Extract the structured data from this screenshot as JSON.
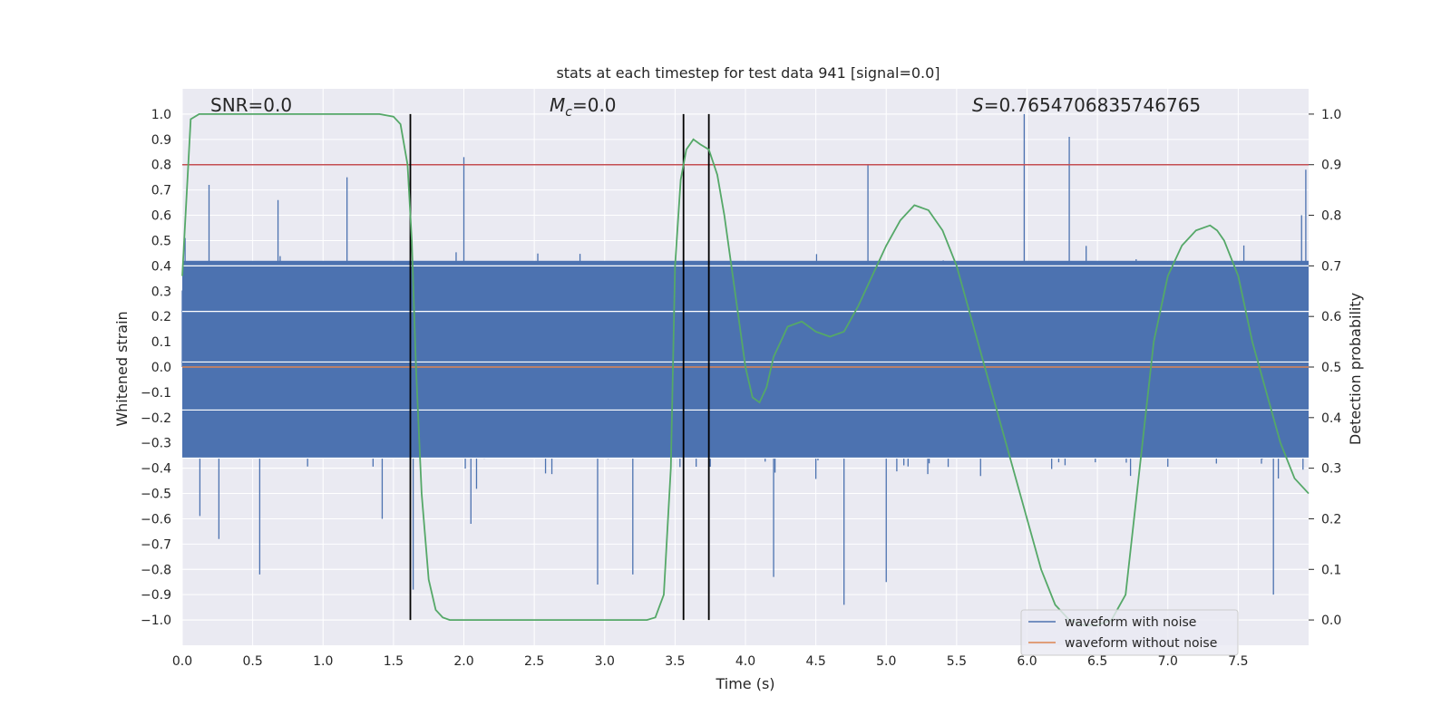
{
  "colors": {
    "plot_bg": "#eaeaf2",
    "grid": "#ffffff",
    "noisy": "#4c72b0",
    "clean": "#dd8452",
    "probability": "#55a868",
    "threshold": "#c44e52",
    "markers": "#000000",
    "text": "#262626"
  },
  "chart_data": {
    "type": "line",
    "title": "stats at each timestep for test data 941 [signal=0.0]",
    "xlabel": "Time (s)",
    "ylabel_left": "Whitened strain",
    "ylabel_right": "Detection probability",
    "xlim": [
      0.0,
      8.0
    ],
    "ylim_left": [
      -1.1,
      1.1
    ],
    "ylim_right": [
      -0.05,
      1.05
    ],
    "x_ticks": [
      0.0,
      0.5,
      1.0,
      1.5,
      2.0,
      2.5,
      3.0,
      3.5,
      4.0,
      4.5,
      5.0,
      5.5,
      6.0,
      6.5,
      7.0,
      7.5
    ],
    "x_tick_labels": [
      "0.0",
      "0.5",
      "1.0",
      "1.5",
      "2.0",
      "2.5",
      "3.0",
      "3.5",
      "4.0",
      "4.5",
      "5.0",
      "5.5",
      "6.0",
      "6.5",
      "7.0",
      "7.5"
    ],
    "y_left_ticks": [
      1.0,
      0.9,
      0.8,
      0.7,
      0.6,
      0.5,
      0.4,
      0.3,
      0.2,
      0.1,
      0.0,
      -0.1,
      -0.2,
      -0.3,
      -0.4,
      -0.5,
      -0.6,
      -0.7,
      -0.8,
      -0.9,
      -1.0
    ],
    "y_left_tick_labels": [
      "1.0",
      "0.9",
      "0.8",
      "0.7",
      "0.6",
      "0.5",
      "0.4",
      "0.3",
      "0.2",
      "0.1",
      "0.0",
      "−0.1",
      "−0.2",
      "−0.3",
      "−0.4",
      "−0.5",
      "−0.6",
      "−0.7",
      "−0.8",
      "−0.9",
      "−1.0"
    ],
    "y_right_ticks": [
      1.0,
      0.9,
      0.8,
      0.7,
      0.6,
      0.5,
      0.4,
      0.3,
      0.2,
      0.1,
      0.0
    ],
    "y_right_tick_labels": [
      "1.0",
      "0.9",
      "0.8",
      "0.7",
      "0.6",
      "0.5",
      "0.4",
      "0.3",
      "0.2",
      "0.1",
      "0.0"
    ],
    "grid": true,
    "legend_position": "lower-right",
    "annotations": {
      "snr": "SNR=0.0",
      "mc_symbol": "M",
      "mc_sub": "c",
      "mc_value": "=0.0",
      "s_symbol": "S",
      "s_value": "=0.7654706835746765"
    },
    "threshold_probability": 0.9,
    "vertical_markers_x": [
      1.62,
      3.56,
      3.74
    ],
    "series": [
      {
        "name": "waveform with noise",
        "axis": "left",
        "description_stats": {
          "x_range": [
            0.0,
            8.0
          ],
          "typical_amplitude": 0.3,
          "max": 1.0,
          "min": -0.94
        },
        "peaks": [
          {
            "x": 0.02,
            "y": 0.51
          },
          {
            "x": 0.19,
            "y": 0.72
          },
          {
            "x": 0.26,
            "y": -0.68
          },
          {
            "x": 0.55,
            "y": -0.82
          },
          {
            "x": 0.68,
            "y": 0.66
          },
          {
            "x": 1.17,
            "y": 0.75
          },
          {
            "x": 1.42,
            "y": -0.6
          },
          {
            "x": 1.64,
            "y": -0.88
          },
          {
            "x": 2.0,
            "y": 0.83
          },
          {
            "x": 2.05,
            "y": -0.62
          },
          {
            "x": 2.95,
            "y": -0.86
          },
          {
            "x": 3.2,
            "y": -0.82
          },
          {
            "x": 4.2,
            "y": -0.83
          },
          {
            "x": 4.7,
            "y": -0.94
          },
          {
            "x": 4.87,
            "y": 0.8
          },
          {
            "x": 5.0,
            "y": -0.85
          },
          {
            "x": 5.98,
            "y": 1.0
          },
          {
            "x": 6.3,
            "y": 0.91
          },
          {
            "x": 7.75,
            "y": -0.9
          },
          {
            "x": 7.95,
            "y": 0.6
          },
          {
            "x": 7.98,
            "y": 0.78
          }
        ]
      },
      {
        "name": "waveform without noise",
        "axis": "left",
        "x": [
          0.0,
          8.0
        ],
        "y": [
          0.0,
          0.0
        ]
      },
      {
        "name": "detection probability",
        "axis": "right",
        "x": [
          0.0,
          0.06,
          0.12,
          0.2,
          0.3,
          0.5,
          0.8,
          1.0,
          1.2,
          1.4,
          1.5,
          1.55,
          1.6,
          1.63,
          1.66,
          1.7,
          1.75,
          1.8,
          1.85,
          1.9,
          2.0,
          2.5,
          3.0,
          3.2,
          3.3,
          3.36,
          3.42,
          3.47,
          3.5,
          3.54,
          3.58,
          3.63,
          3.68,
          3.74,
          3.8,
          3.85,
          3.9,
          3.95,
          4.0,
          4.05,
          4.1,
          4.15,
          4.2,
          4.3,
          4.4,
          4.5,
          4.6,
          4.7,
          4.8,
          4.9,
          5.0,
          5.1,
          5.2,
          5.3,
          5.4,
          5.5,
          5.6,
          5.7,
          5.8,
          5.9,
          6.0,
          6.1,
          6.2,
          6.3,
          6.4,
          6.5,
          6.6,
          6.7,
          6.8,
          6.9,
          7.0,
          7.1,
          7.2,
          7.3,
          7.35,
          7.4,
          7.5,
          7.6,
          7.7,
          7.8,
          7.9,
          8.0
        ],
        "y": [
          0.68,
          0.99,
          1.0,
          1.0,
          1.0,
          1.0,
          1.0,
          1.0,
          1.0,
          1.0,
          0.995,
          0.98,
          0.9,
          0.75,
          0.5,
          0.25,
          0.08,
          0.02,
          0.005,
          0.0,
          0.0,
          0.0,
          0.0,
          0.0,
          0.0,
          0.005,
          0.05,
          0.3,
          0.7,
          0.87,
          0.93,
          0.95,
          0.94,
          0.93,
          0.88,
          0.8,
          0.7,
          0.6,
          0.5,
          0.44,
          0.43,
          0.46,
          0.52,
          0.58,
          0.59,
          0.57,
          0.56,
          0.57,
          0.62,
          0.68,
          0.74,
          0.79,
          0.82,
          0.81,
          0.77,
          0.7,
          0.6,
          0.5,
          0.4,
          0.3,
          0.2,
          0.1,
          0.03,
          0.0,
          -0.01,
          -0.01,
          0.0,
          0.05,
          0.3,
          0.55,
          0.68,
          0.74,
          0.77,
          0.78,
          0.77,
          0.75,
          0.68,
          0.55,
          0.45,
          0.35,
          0.28,
          0.25
        ]
      }
    ]
  }
}
